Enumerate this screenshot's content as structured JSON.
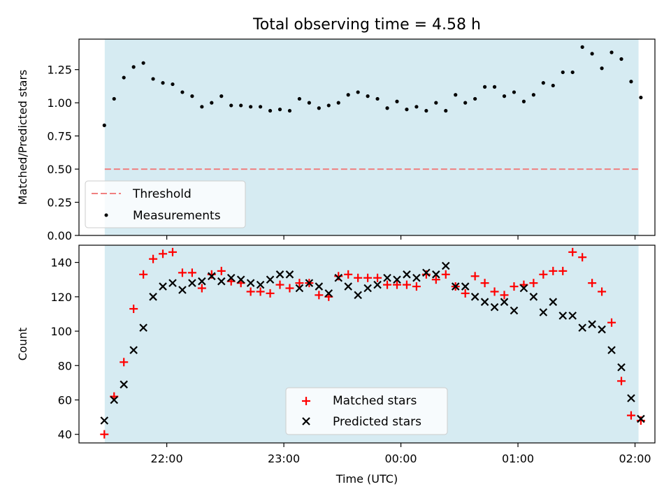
{
  "figure_title": "Total observing time = 4.58 h",
  "chart_data": [
    {
      "type": "scatter",
      "ylabel": "Matched/Predicted stars",
      "ylim": [
        0,
        1.48
      ],
      "yticks": [
        0.0,
        0.25,
        0.5,
        0.75,
        1.0,
        1.25
      ],
      "ytick_labels": [
        "0.00",
        "0.25",
        "0.50",
        "0.75",
        "1.00",
        "1.25"
      ],
      "x_range_hours": [
        21.25,
        2.17
      ],
      "observing_window_hours": [
        21.47,
        2.03
      ],
      "threshold": 0.5,
      "legend": {
        "placement": "lower-left",
        "entries": [
          "Threshold",
          "Measurements"
        ]
      },
      "series": [
        {
          "name": "Measurements",
          "x": [
            "21:28",
            "21:33",
            "21:38",
            "21:43",
            "21:48",
            "21:53",
            "21:58",
            "22:03",
            "22:08",
            "22:13",
            "22:18",
            "22:23",
            "22:28",
            "22:33",
            "22:38",
            "22:43",
            "22:48",
            "22:53",
            "22:58",
            "23:03",
            "23:08",
            "23:13",
            "23:18",
            "23:23",
            "23:28",
            "23:33",
            "23:38",
            "23:43",
            "23:48",
            "23:53",
            "23:58",
            "00:03",
            "00:08",
            "00:13",
            "00:18",
            "00:23",
            "00:28",
            "00:33",
            "00:38",
            "00:43",
            "00:48",
            "00:53",
            "00:58",
            "01:03",
            "01:08",
            "01:13",
            "01:18",
            "01:23",
            "01:28",
            "01:33",
            "01:38",
            "01:43",
            "01:48",
            "01:53",
            "01:58",
            "02:03"
          ],
          "y": [
            0.83,
            1.03,
            1.19,
            1.27,
            1.3,
            1.18,
            1.15,
            1.14,
            1.08,
            1.05,
            0.97,
            1.0,
            1.05,
            0.98,
            0.98,
            0.97,
            0.97,
            0.94,
            0.95,
            0.94,
            1.03,
            1.0,
            0.96,
            0.98,
            1.0,
            1.06,
            1.08,
            1.05,
            1.03,
            0.96,
            1.01,
            0.95,
            0.97,
            0.94,
            1.0,
            0.94,
            1.06,
            1.0,
            1.03,
            1.12,
            1.12,
            1.05,
            1.08,
            1.01,
            1.06,
            1.15,
            1.13,
            1.23,
            1.23,
            1.42,
            1.37,
            1.26,
            1.38,
            1.33,
            1.16,
            1.04
          ]
        }
      ]
    },
    {
      "type": "scatter",
      "ylabel": "Count",
      "xlabel": "Time (UTC)",
      "ylim": [
        35,
        150
      ],
      "yticks": [
        40,
        60,
        80,
        100,
        120,
        140
      ],
      "xticks": [
        "22:00",
        "23:00",
        "00:00",
        "01:00",
        "02:00"
      ],
      "x_range_hours": [
        21.25,
        2.17
      ],
      "observing_window_hours": [
        21.47,
        2.03
      ],
      "legend": {
        "placement": "lower-center",
        "entries": [
          "Matched stars",
          "Predicted stars"
        ]
      },
      "series": [
        {
          "name": "Matched stars",
          "x": [
            "21:28",
            "21:33",
            "21:38",
            "21:43",
            "21:48",
            "21:53",
            "21:58",
            "22:03",
            "22:08",
            "22:13",
            "22:18",
            "22:23",
            "22:28",
            "22:33",
            "22:38",
            "22:43",
            "22:48",
            "22:53",
            "22:58",
            "23:03",
            "23:08",
            "23:13",
            "23:18",
            "23:23",
            "23:28",
            "23:33",
            "23:38",
            "23:43",
            "23:48",
            "23:53",
            "23:58",
            "00:03",
            "00:08",
            "00:13",
            "00:18",
            "00:23",
            "00:28",
            "00:33",
            "00:38",
            "00:43",
            "00:48",
            "00:53",
            "00:58",
            "01:03",
            "01:08",
            "01:13",
            "01:18",
            "01:23",
            "01:28",
            "01:33",
            "01:38",
            "01:43",
            "01:48",
            "01:53",
            "01:58",
            "02:03"
          ],
          "y": [
            40,
            62,
            82,
            113,
            133,
            142,
            145,
            146,
            134,
            134,
            125,
            133,
            135,
            129,
            128,
            123,
            123,
            122,
            127,
            125,
            128,
            128,
            121,
            120,
            132,
            133,
            131,
            131,
            131,
            127,
            127,
            127,
            126,
            133,
            130,
            133,
            126,
            122,
            132,
            128,
            123,
            121,
            126,
            127,
            128,
            133,
            135,
            135,
            146,
            143,
            128,
            123,
            105,
            71,
            51,
            48
          ]
        },
        {
          "name": "Predicted stars",
          "x": [
            "21:28",
            "21:33",
            "21:38",
            "21:43",
            "21:48",
            "21:53",
            "21:58",
            "22:03",
            "22:08",
            "22:13",
            "22:18",
            "22:23",
            "22:28",
            "22:33",
            "22:38",
            "22:43",
            "22:48",
            "22:53",
            "22:58",
            "23:03",
            "23:08",
            "23:13",
            "23:18",
            "23:23",
            "23:28",
            "23:33",
            "23:38",
            "23:43",
            "23:48",
            "23:53",
            "23:58",
            "00:03",
            "00:08",
            "00:13",
            "00:18",
            "00:23",
            "00:28",
            "00:33",
            "00:38",
            "00:43",
            "00:48",
            "00:53",
            "00:58",
            "01:03",
            "01:08",
            "01:13",
            "01:18",
            "01:23",
            "01:28",
            "01:33",
            "01:38",
            "01:43",
            "01:48",
            "01:53",
            "01:58",
            "02:03"
          ],
          "y": [
            48,
            60,
            69,
            89,
            102,
            120,
            126,
            128,
            124,
            128,
            129,
            132,
            129,
            131,
            130,
            128,
            127,
            130,
            133,
            133,
            125,
            128,
            126,
            122,
            131,
            126,
            121,
            125,
            127,
            131,
            130,
            133,
            131,
            134,
            133,
            138,
            126,
            126,
            120,
            117,
            114,
            117,
            112,
            125,
            120,
            111,
            117,
            109,
            109,
            102,
            104,
            101,
            89,
            79,
            61,
            49
          ]
        }
      ]
    }
  ]
}
